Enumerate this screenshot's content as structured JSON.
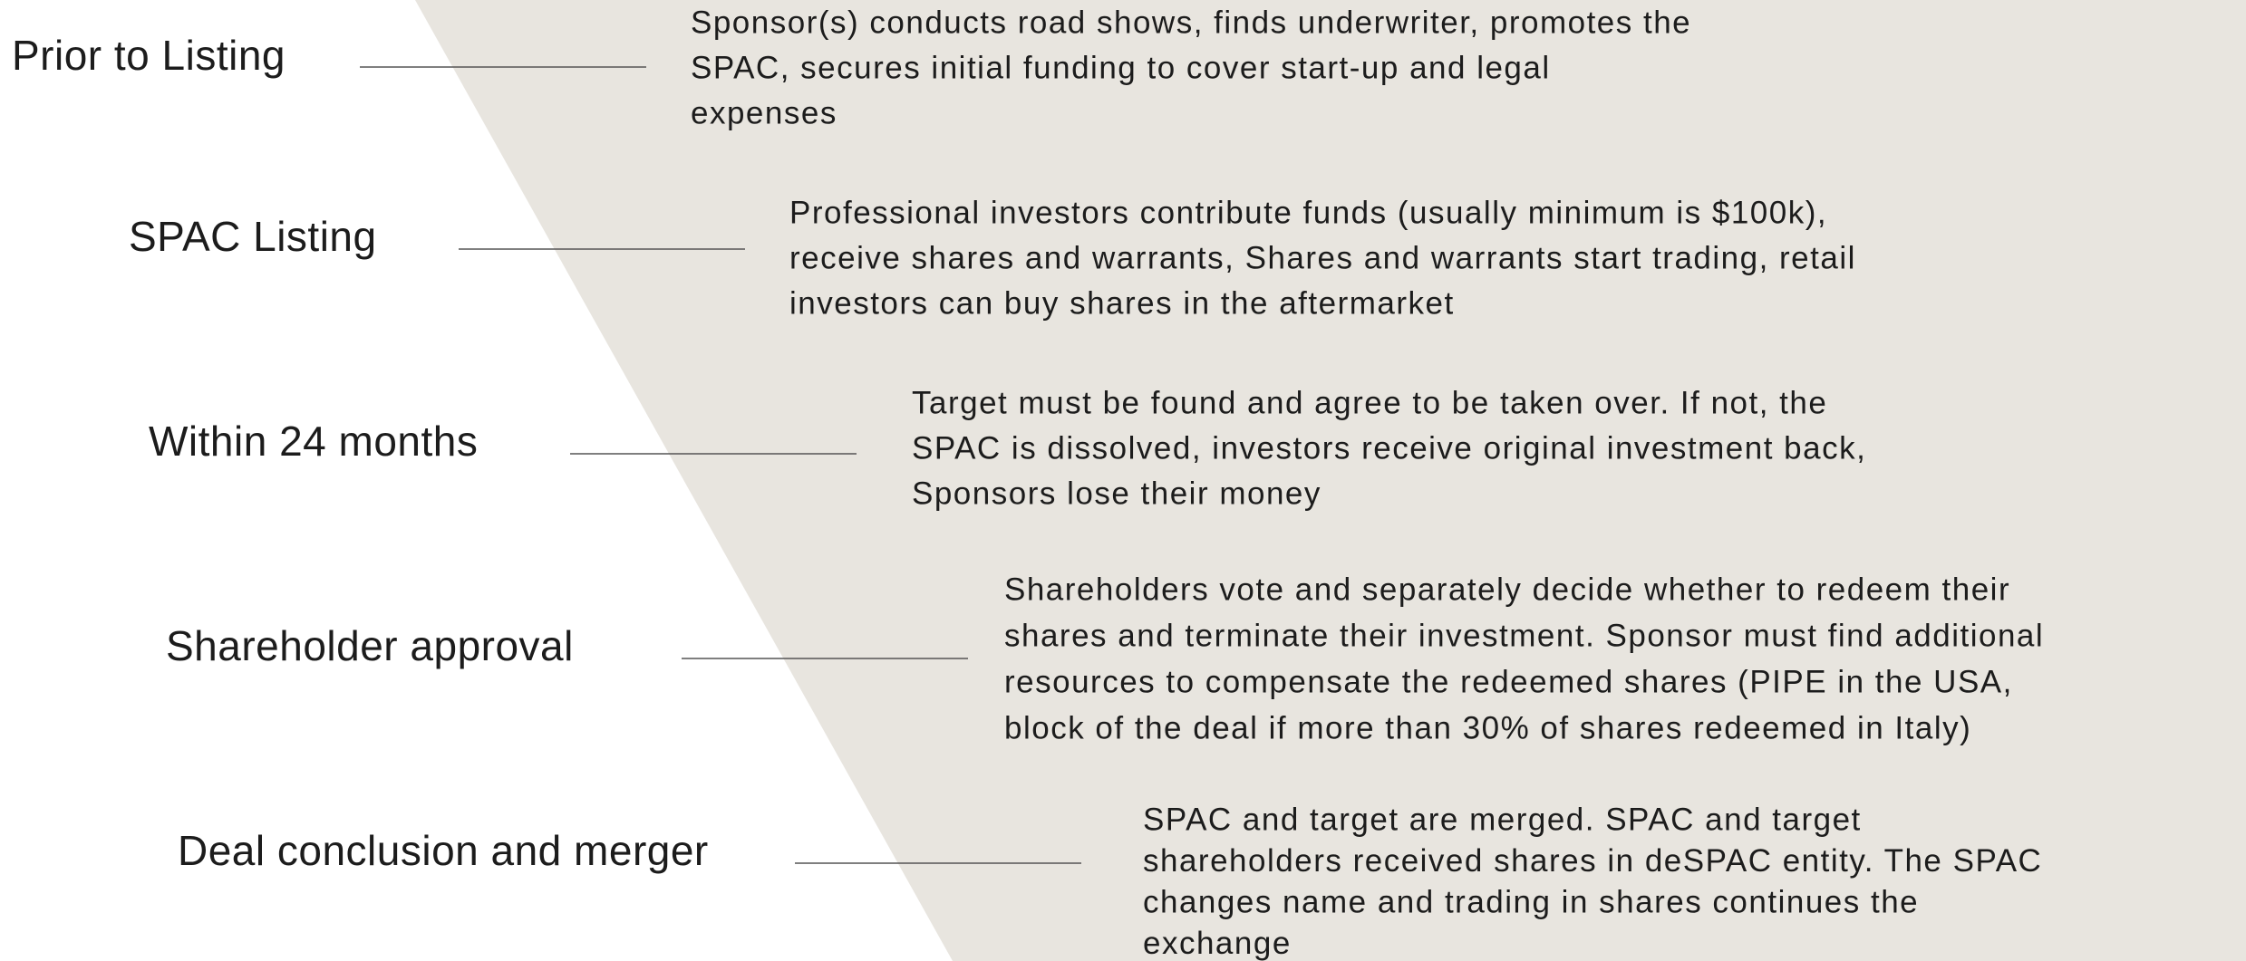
{
  "steps": [
    {
      "label": "Prior to Listing",
      "description": [
        "Sponsor(s) conducts road shows, finds underwriter, promotes the",
        "SPAC, secures initial funding to cover start-up and legal",
        "expenses"
      ]
    },
    {
      "label": "SPAC Listing",
      "description": [
        "Professional investors contribute funds (usually minimum is $100k),",
        "receive shares and warrants, Shares and warrants start trading, retail",
        "investors can buy shares in the aftermarket"
      ]
    },
    {
      "label": "Within 24 months",
      "description": [
        "Target must be found and agree to be taken over. If not, the",
        "SPAC is dissolved, investors receive original investment back,",
        "Sponsors lose their money"
      ]
    },
    {
      "label": "Shareholder approval",
      "description": [
        "Shareholders vote and separately decide whether to redeem their",
        "shares and terminate their investment. Sponsor must find additional",
        "resources to compensate the redeemed shares (PIPE in the USA,",
        "block of the deal if more than 30% of shares redeemed in Italy)"
      ]
    },
    {
      "label": "Deal conclusion and merger",
      "description": [
        "SPAC and target are merged. SPAC and target",
        "shareholders received shares in deSPAC entity. The SPAC",
        "changes name and trading in shares continues the",
        "exchange"
      ]
    }
  ]
}
